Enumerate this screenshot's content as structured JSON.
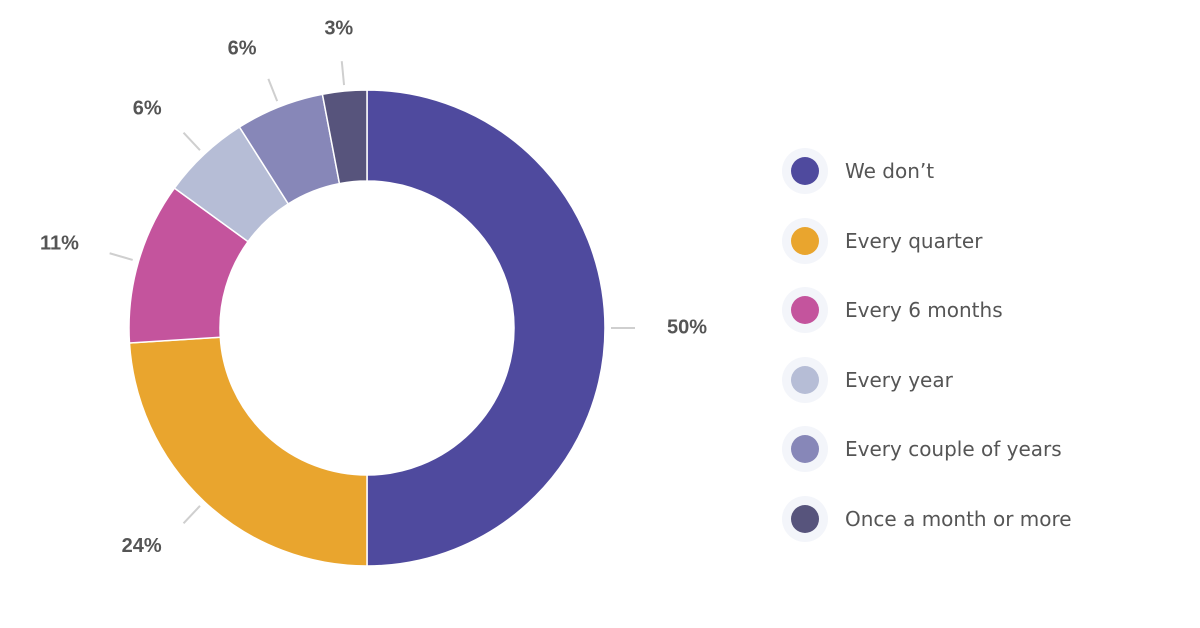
{
  "chart_data": {
    "type": "pie",
    "variant": "donut",
    "categories": [
      "We don’t",
      "Every quarter",
      "Every 6 months",
      "Every year",
      "Every couple of years",
      "Once a month or more"
    ],
    "values": [
      50,
      24,
      11,
      6,
      6,
      3
    ],
    "value_labels": [
      "50%",
      "24%",
      "11%",
      "6%",
      "6%",
      "3%"
    ],
    "colors": [
      "#4f4a9e",
      "#e9a52e",
      "#c4549d",
      "#b6bdd6",
      "#8787b8",
      "#57547c"
    ],
    "title": "",
    "legend_position": "right"
  }
}
